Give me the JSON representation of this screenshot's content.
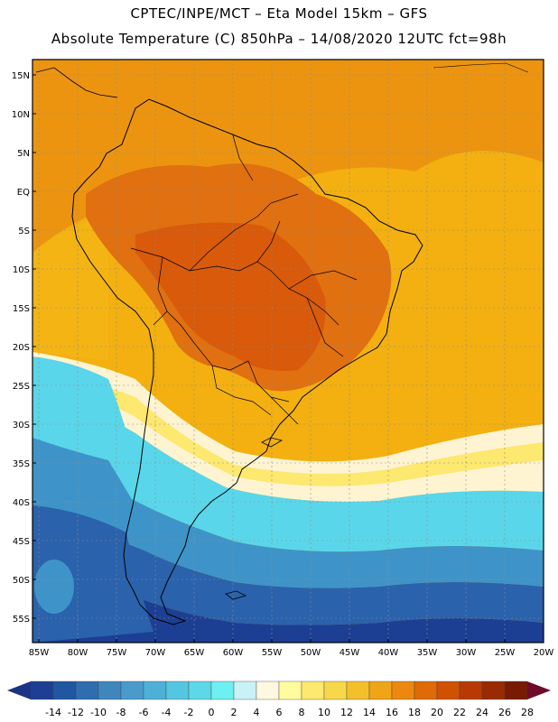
{
  "header": {
    "line1": "CPTEC/INPE/MCT –  Eta Model 15km – GFS",
    "line2": "Absolute Temperature (C) 850hPa – 14/08/2020 12UTC fct=98h"
  },
  "map": {
    "lat_labels": [
      "15N",
      "10N",
      "5N",
      "EQ",
      "5S",
      "10S",
      "15S",
      "20S",
      "25S",
      "30S",
      "35S",
      "40S",
      "45S",
      "50S",
      "55S"
    ],
    "lon_labels": [
      "85W",
      "80W",
      "75W",
      "70W",
      "65W",
      "60W",
      "55W",
      "50W",
      "45W",
      "40W",
      "35W",
      "30W",
      "25W",
      "20W"
    ]
  },
  "colorbar": {
    "labels": [
      "-14",
      "-12",
      "-10",
      "-8",
      "-6",
      "-4",
      "-2",
      "0",
      "2",
      "4",
      "6",
      "8",
      "10",
      "12",
      "14",
      "16",
      "18",
      "20",
      "22",
      "24",
      "26",
      "28"
    ],
    "colors": [
      "#1c3f94",
      "#2057a3",
      "#2e6db0",
      "#3f86be",
      "#4a9bcb",
      "#4eb0d6",
      "#55c6e0",
      "#5dd8e8",
      "#6ef0f0",
      "#c8f2f6",
      "#fff8e0",
      "#fffca0",
      "#fde870",
      "#f7d84a",
      "#f3c02c",
      "#f0a418",
      "#ec8810",
      "#e06a08",
      "#d05004",
      "#b83a02",
      "#9a2a02",
      "#7a1a02"
    ],
    "left_arrow_color": "#1b3486",
    "right_arrow_color": "#6e0a2a"
  },
  "palette": {
    "ocean_warm": "#f3b010",
    "ocean_orange": "#ec8e10",
    "land_hot": "#dc6810",
    "land_hotter": "#d25a0a",
    "cream": "#fff4d2",
    "cyan": "#5ad6ea",
    "blue_mid": "#3e94c8",
    "blue_dark": "#2a62ac",
    "blue_deep": "#1c3f94"
  }
}
